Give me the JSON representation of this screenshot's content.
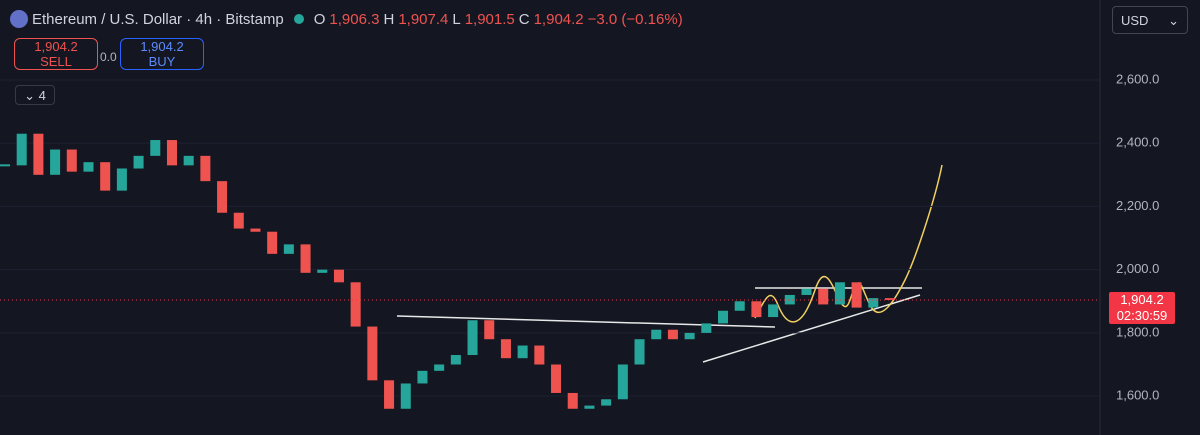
{
  "header": {
    "symbol": "Ethereum / U.S. Dollar · 4h · Bitstamp",
    "o_label": "O",
    "open": "1,906.3",
    "h_label": "H",
    "high": "1,907.4",
    "l_label": "L",
    "low": "1,901.5",
    "c_label": "C",
    "close": "1,904.2",
    "change": "−3.0 (−0.16%)"
  },
  "trade": {
    "sell_price": "1,904.2",
    "sell": "SELL",
    "spread": "0.0",
    "buy_price": "1,904.2",
    "buy": "BUY"
  },
  "indicator_count": "4",
  "currency": "USD",
  "price_label": "1,904.2",
  "countdown": "02:30:59",
  "chart_data": {
    "type": "candlestick",
    "up_color": "#26a69a",
    "down_color": "#ef5350",
    "values": [
      2330,
      2430,
      2300,
      2380,
      2310,
      2340,
      2250,
      2320,
      2360,
      2410,
      2330,
      2360,
      2280,
      2180,
      2130,
      2120,
      2050,
      2080,
      1990,
      2000,
      1960,
      1820,
      1650,
      1560,
      1640,
      1680,
      1700,
      1730,
      1840,
      1780,
      1720,
      1760,
      1700,
      1610,
      1560,
      1570,
      1590,
      1700,
      1780,
      1810,
      1780,
      1800,
      1830,
      1870,
      1900,
      1850,
      1890,
      1920,
      1940,
      1890,
      1960,
      1880,
      1910,
      1904.2
    ],
    "last_price": 1904.2,
    "ylim": [
      1477,
      2853
    ],
    "yticks": [
      {
        "value": 1600,
        "label": "1,600.0"
      },
      {
        "value": 1800,
        "label": "1,800.0"
      },
      {
        "value": 2000,
        "label": "2,000.0"
      },
      {
        "value": 2200,
        "label": "2,200.0"
      },
      {
        "value": 2400,
        "label": "2,400.0"
      },
      {
        "value": 2600,
        "label": "2,600.0"
      }
    ]
  }
}
